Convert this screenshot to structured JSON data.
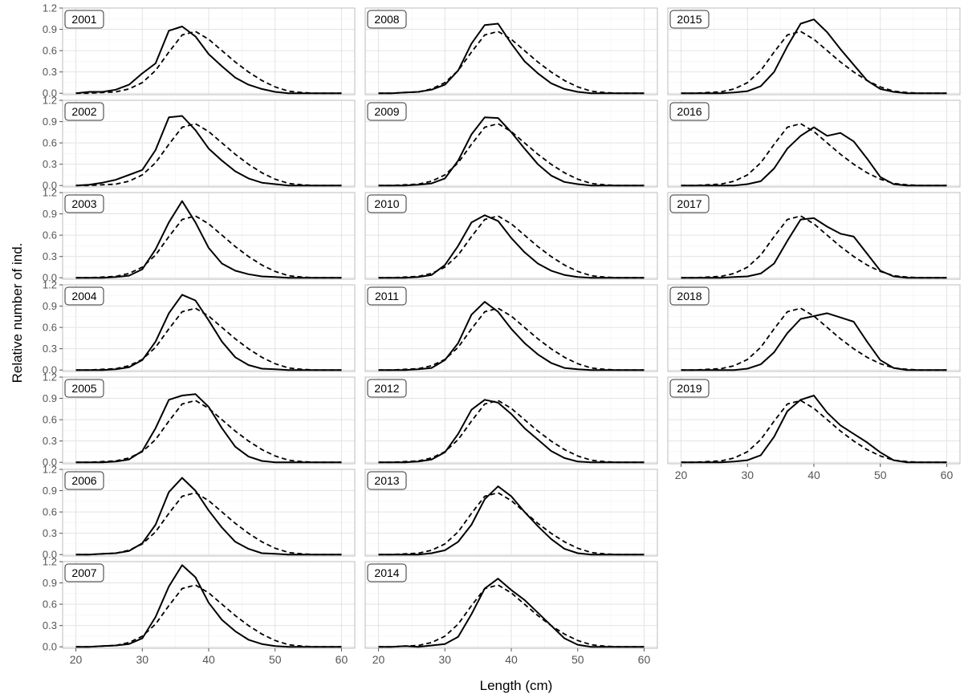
{
  "chart_data": {
    "type": "line",
    "layout": "faceted small multiples, 3 columns by 7 rows, facets filled column-wise",
    "xlabel": "Length (cm)",
    "ylabel": "Relative number of ind.",
    "xlim": [
      18,
      62
    ],
    "ylim": [
      -0.02,
      1.2
    ],
    "x_ticks": [
      20,
      30,
      40,
      50,
      60
    ],
    "y_ticks": [
      0.0,
      0.3,
      0.6,
      0.9,
      1.2
    ],
    "y_tick_labels": [
      "0.0",
      "0.3",
      "0.6",
      "0.9",
      "1.2"
    ],
    "grid": true,
    "legend": "none",
    "line_color": "#000000",
    "x": [
      20,
      22,
      24,
      26,
      28,
      30,
      32,
      34,
      36,
      38,
      40,
      42,
      44,
      46,
      48,
      50,
      52,
      54,
      56,
      58,
      60
    ],
    "reference_line": {
      "style": "dashed",
      "values": [
        0.0,
        0.0,
        0.01,
        0.02,
        0.06,
        0.15,
        0.32,
        0.58,
        0.82,
        0.87,
        0.76,
        0.6,
        0.44,
        0.3,
        0.18,
        0.09,
        0.03,
        0.01,
        0.0,
        0.0,
        0.0
      ]
    },
    "facets": [
      {
        "label": "2001",
        "values": [
          0.0,
          0.02,
          0.02,
          0.05,
          0.12,
          0.28,
          0.42,
          0.88,
          0.94,
          0.8,
          0.55,
          0.38,
          0.22,
          0.12,
          0.06,
          0.02,
          0.0,
          0.0,
          0.0,
          0.0,
          0.0
        ]
      },
      {
        "label": "2002",
        "values": [
          0.0,
          0.01,
          0.04,
          0.08,
          0.15,
          0.22,
          0.5,
          0.96,
          0.98,
          0.78,
          0.52,
          0.35,
          0.2,
          0.1,
          0.04,
          0.02,
          0.0,
          0.0,
          0.0,
          0.0,
          0.0
        ]
      },
      {
        "label": "2003",
        "values": [
          0.0,
          0.0,
          0.0,
          0.01,
          0.03,
          0.12,
          0.4,
          0.78,
          1.08,
          0.78,
          0.42,
          0.2,
          0.1,
          0.05,
          0.02,
          0.01,
          0.0,
          0.0,
          0.0,
          0.0,
          0.0
        ]
      },
      {
        "label": "2004",
        "values": [
          0.0,
          0.0,
          0.0,
          0.01,
          0.04,
          0.14,
          0.4,
          0.8,
          1.06,
          0.98,
          0.7,
          0.4,
          0.18,
          0.07,
          0.02,
          0.01,
          0.0,
          0.0,
          0.0,
          0.0,
          0.0
        ]
      },
      {
        "label": "2005",
        "values": [
          0.0,
          0.0,
          0.0,
          0.01,
          0.04,
          0.16,
          0.48,
          0.88,
          0.94,
          0.96,
          0.78,
          0.48,
          0.22,
          0.08,
          0.02,
          0.0,
          0.0,
          0.0,
          0.0,
          0.0,
          0.0
        ]
      },
      {
        "label": "2006",
        "values": [
          0.0,
          0.0,
          0.01,
          0.02,
          0.05,
          0.16,
          0.42,
          0.88,
          1.08,
          0.9,
          0.62,
          0.38,
          0.18,
          0.08,
          0.02,
          0.01,
          0.0,
          0.0,
          0.0,
          0.0,
          0.0
        ]
      },
      {
        "label": "2007",
        "values": [
          0.0,
          0.0,
          0.01,
          0.02,
          0.04,
          0.12,
          0.42,
          0.85,
          1.15,
          0.98,
          0.62,
          0.38,
          0.22,
          0.1,
          0.04,
          0.01,
          0.0,
          0.0,
          0.0,
          0.0,
          0.0
        ]
      },
      {
        "label": "2008",
        "values": [
          0.0,
          0.0,
          0.01,
          0.02,
          0.05,
          0.12,
          0.32,
          0.7,
          0.96,
          0.98,
          0.7,
          0.45,
          0.28,
          0.14,
          0.06,
          0.02,
          0.0,
          0.0,
          0.0,
          0.0,
          0.0
        ]
      },
      {
        "label": "2009",
        "values": [
          0.0,
          0.0,
          0.0,
          0.01,
          0.03,
          0.1,
          0.35,
          0.72,
          0.96,
          0.95,
          0.75,
          0.52,
          0.3,
          0.14,
          0.05,
          0.02,
          0.0,
          0.0,
          0.0,
          0.0,
          0.0
        ]
      },
      {
        "label": "2010",
        "values": [
          0.0,
          0.0,
          0.0,
          0.01,
          0.04,
          0.18,
          0.45,
          0.78,
          0.88,
          0.8,
          0.56,
          0.36,
          0.2,
          0.1,
          0.04,
          0.01,
          0.0,
          0.0,
          0.0,
          0.0,
          0.0
        ]
      },
      {
        "label": "2011",
        "values": [
          0.0,
          0.0,
          0.0,
          0.01,
          0.03,
          0.14,
          0.38,
          0.78,
          0.96,
          0.82,
          0.58,
          0.38,
          0.22,
          0.1,
          0.03,
          0.01,
          0.0,
          0.0,
          0.0,
          0.0,
          0.0
        ]
      },
      {
        "label": "2012",
        "values": [
          0.0,
          0.0,
          0.0,
          0.01,
          0.04,
          0.14,
          0.4,
          0.74,
          0.88,
          0.84,
          0.68,
          0.48,
          0.32,
          0.16,
          0.06,
          0.01,
          0.0,
          0.0,
          0.0,
          0.0,
          0.0
        ]
      },
      {
        "label": "2013",
        "values": [
          0.0,
          0.0,
          0.0,
          0.0,
          0.02,
          0.06,
          0.18,
          0.42,
          0.78,
          0.96,
          0.82,
          0.6,
          0.4,
          0.22,
          0.08,
          0.02,
          0.0,
          0.0,
          0.0,
          0.0,
          0.0
        ]
      },
      {
        "label": "2014",
        "values": [
          0.0,
          0.0,
          0.01,
          0.0,
          0.02,
          0.04,
          0.14,
          0.46,
          0.82,
          0.96,
          0.8,
          0.66,
          0.48,
          0.3,
          0.12,
          0.03,
          0.0,
          0.0,
          0.0,
          0.0,
          0.0
        ]
      },
      {
        "label": "2015",
        "values": [
          0.0,
          0.0,
          0.0,
          0.0,
          0.01,
          0.03,
          0.1,
          0.3,
          0.66,
          0.98,
          1.04,
          0.86,
          0.62,
          0.4,
          0.18,
          0.06,
          0.02,
          0.0,
          0.0,
          0.0,
          0.0
        ]
      },
      {
        "label": "2016",
        "values": [
          0.0,
          0.0,
          0.0,
          0.0,
          0.0,
          0.02,
          0.06,
          0.24,
          0.52,
          0.7,
          0.82,
          0.7,
          0.74,
          0.62,
          0.38,
          0.12,
          0.02,
          0.0,
          0.0,
          0.0,
          0.0
        ]
      },
      {
        "label": "2017",
        "values": [
          0.0,
          0.0,
          0.0,
          0.0,
          0.01,
          0.02,
          0.06,
          0.2,
          0.52,
          0.82,
          0.84,
          0.72,
          0.62,
          0.58,
          0.34,
          0.1,
          0.02,
          0.0,
          0.0,
          0.0,
          0.0
        ]
      },
      {
        "label": "2018",
        "values": [
          0.0,
          0.0,
          0.0,
          0.0,
          0.0,
          0.02,
          0.08,
          0.25,
          0.52,
          0.72,
          0.76,
          0.8,
          0.74,
          0.68,
          0.4,
          0.14,
          0.03,
          0.0,
          0.0,
          0.0,
          0.0
        ]
      },
      {
        "label": "2019",
        "values": [
          0.0,
          0.0,
          0.0,
          0.0,
          0.01,
          0.03,
          0.1,
          0.36,
          0.72,
          0.88,
          0.94,
          0.7,
          0.52,
          0.4,
          0.28,
          0.14,
          0.03,
          0.0,
          0.0,
          0.0,
          0.0
        ]
      }
    ]
  }
}
